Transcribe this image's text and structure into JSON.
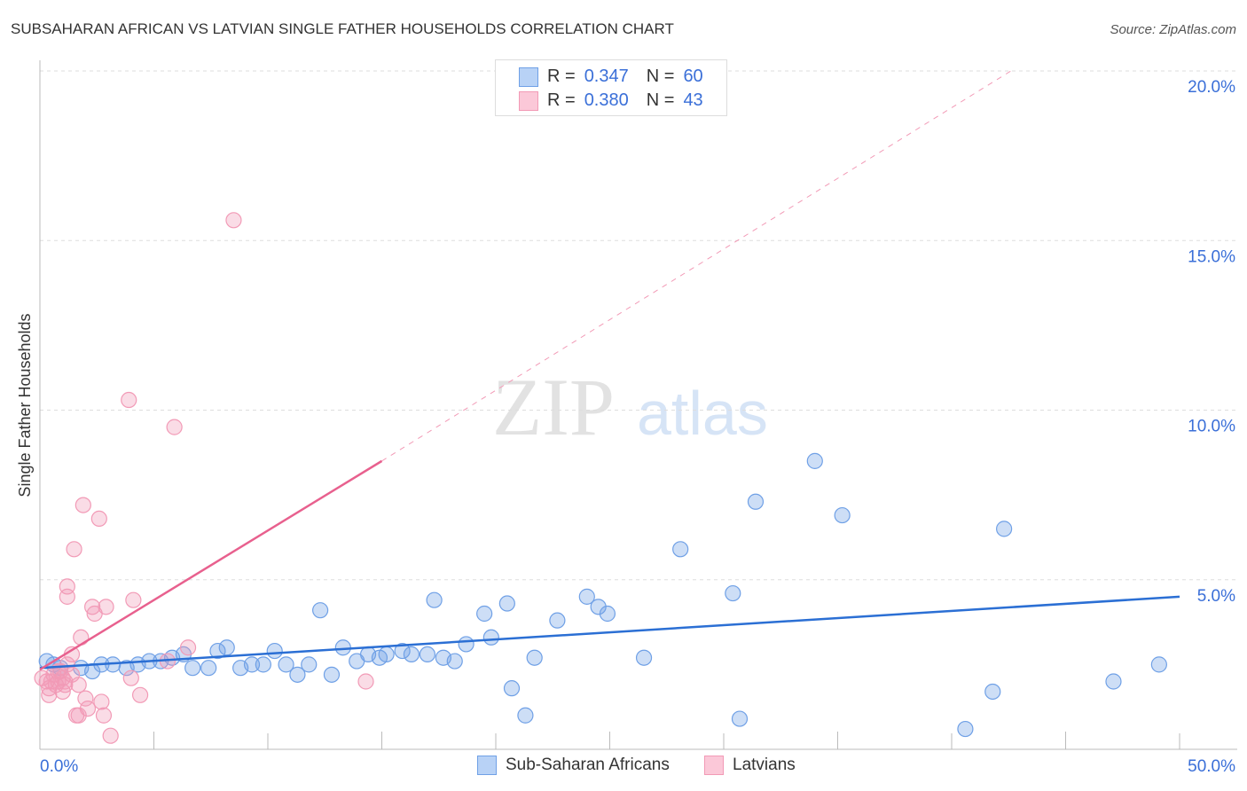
{
  "chart_data": {
    "type": "scatter",
    "title": "SUBSAHARAN AFRICAN VS LATVIAN SINGLE FATHER HOUSEHOLDS CORRELATION CHART",
    "source": "Source: ZipAtlas.com",
    "xlabel": "",
    "ylabel": "Single Father Households",
    "xlim": [
      0,
      50
    ],
    "ylim": [
      0,
      20
    ],
    "x_tick_labels": [
      "0.0%",
      "50.0%"
    ],
    "y_ticks": [
      5,
      10,
      15,
      20
    ],
    "y_tick_labels": [
      "5.0%",
      "10.0%",
      "15.0%",
      "20.0%"
    ],
    "grid": true,
    "watermark": "ZIPatlas",
    "legend_position": "top-center",
    "series": [
      {
        "name": "Sub-Saharan Africans",
        "color": "#6fa0e6",
        "line_color": "#2b6fd4",
        "R": "0.347",
        "N": "60",
        "trend": [
          [
            0,
            2.4
          ],
          [
            50,
            4.5
          ]
        ],
        "points": [
          [
            0.3,
            2.6
          ],
          [
            0.6,
            2.5
          ],
          [
            0.9,
            2.4
          ],
          [
            1.8,
            2.4
          ],
          [
            2.3,
            2.3
          ],
          [
            2.7,
            2.5
          ],
          [
            3.2,
            2.5
          ],
          [
            3.8,
            2.4
          ],
          [
            4.3,
            2.5
          ],
          [
            4.8,
            2.6
          ],
          [
            5.3,
            2.6
          ],
          [
            5.8,
            2.7
          ],
          [
            6.3,
            2.8
          ],
          [
            6.7,
            2.4
          ],
          [
            7.4,
            2.4
          ],
          [
            7.8,
            2.9
          ],
          [
            8.2,
            3.0
          ],
          [
            8.8,
            2.4
          ],
          [
            9.3,
            2.5
          ],
          [
            9.8,
            2.5
          ],
          [
            10.3,
            2.9
          ],
          [
            10.8,
            2.5
          ],
          [
            11.3,
            2.2
          ],
          [
            11.8,
            2.5
          ],
          [
            12.3,
            4.1
          ],
          [
            12.8,
            2.2
          ],
          [
            13.3,
            3.0
          ],
          [
            13.9,
            2.6
          ],
          [
            14.4,
            2.8
          ],
          [
            14.9,
            2.7
          ],
          [
            15.2,
            2.8
          ],
          [
            15.9,
            2.9
          ],
          [
            16.3,
            2.8
          ],
          [
            17.0,
            2.8
          ],
          [
            17.3,
            4.4
          ],
          [
            17.7,
            2.7
          ],
          [
            18.2,
            2.6
          ],
          [
            18.7,
            3.1
          ],
          [
            19.5,
            4.0
          ],
          [
            19.8,
            3.3
          ],
          [
            20.5,
            4.3
          ],
          [
            20.7,
            1.8
          ],
          [
            21.3,
            1.0
          ],
          [
            21.7,
            2.7
          ],
          [
            22.7,
            3.8
          ],
          [
            24.0,
            4.5
          ],
          [
            24.5,
            4.2
          ],
          [
            24.9,
            4.0
          ],
          [
            26.5,
            2.7
          ],
          [
            28.1,
            5.9
          ],
          [
            30.4,
            4.6
          ],
          [
            30.7,
            0.9
          ],
          [
            31.4,
            7.3
          ],
          [
            34.0,
            8.5
          ],
          [
            35.2,
            6.9
          ],
          [
            40.6,
            0.6
          ],
          [
            41.8,
            1.7
          ],
          [
            42.3,
            6.5
          ],
          [
            47.1,
            2.0
          ],
          [
            49.1,
            2.5
          ]
        ]
      },
      {
        "name": "Latvians",
        "color": "#f29ab6",
        "line_color": "#e8608e",
        "R": "0.380",
        "N": "43",
        "trend": [
          [
            0,
            2.35
          ],
          [
            15,
            8.5
          ]
        ],
        "trend_dashed": [
          [
            15,
            8.5
          ],
          [
            42.6,
            20
          ]
        ],
        "points": [
          [
            0.1,
            2.1
          ],
          [
            0.3,
            2.0
          ],
          [
            0.4,
            1.8
          ],
          [
            0.5,
            2.0
          ],
          [
            0.7,
            1.9
          ],
          [
            0.8,
            2.0
          ],
          [
            1.0,
            1.7
          ],
          [
            1.1,
            1.9
          ],
          [
            1.2,
            2.5
          ],
          [
            1.4,
            2.8
          ],
          [
            0.9,
            2.3
          ],
          [
            0.6,
            2.2
          ],
          [
            1.2,
            4.8
          ],
          [
            1.2,
            4.5
          ],
          [
            1.5,
            5.9
          ],
          [
            1.6,
            1.0
          ],
          [
            1.7,
            1.0
          ],
          [
            1.8,
            3.3
          ],
          [
            1.7,
            1.9
          ],
          [
            1.9,
            7.2
          ],
          [
            2.0,
            1.5
          ],
          [
            2.1,
            1.2
          ],
          [
            2.3,
            4.2
          ],
          [
            2.4,
            4.0
          ],
          [
            2.6,
            6.8
          ],
          [
            2.7,
            1.4
          ],
          [
            2.8,
            1.0
          ],
          [
            2.9,
            4.2
          ],
          [
            3.1,
            0.4
          ],
          [
            3.9,
            10.3
          ],
          [
            4.0,
            2.1
          ],
          [
            4.1,
            4.4
          ],
          [
            4.4,
            1.6
          ],
          [
            5.9,
            9.5
          ],
          [
            5.6,
            2.6
          ],
          [
            6.5,
            3.0
          ],
          [
            8.5,
            15.6
          ],
          [
            14.3,
            2.0
          ],
          [
            1.0,
            2.1
          ],
          [
            0.4,
            1.6
          ],
          [
            1.4,
            2.2
          ],
          [
            0.8,
            2.3
          ],
          [
            1.1,
            2.0
          ]
        ]
      }
    ]
  },
  "legend_labels": {
    "r": "R =",
    "n": "N ="
  }
}
